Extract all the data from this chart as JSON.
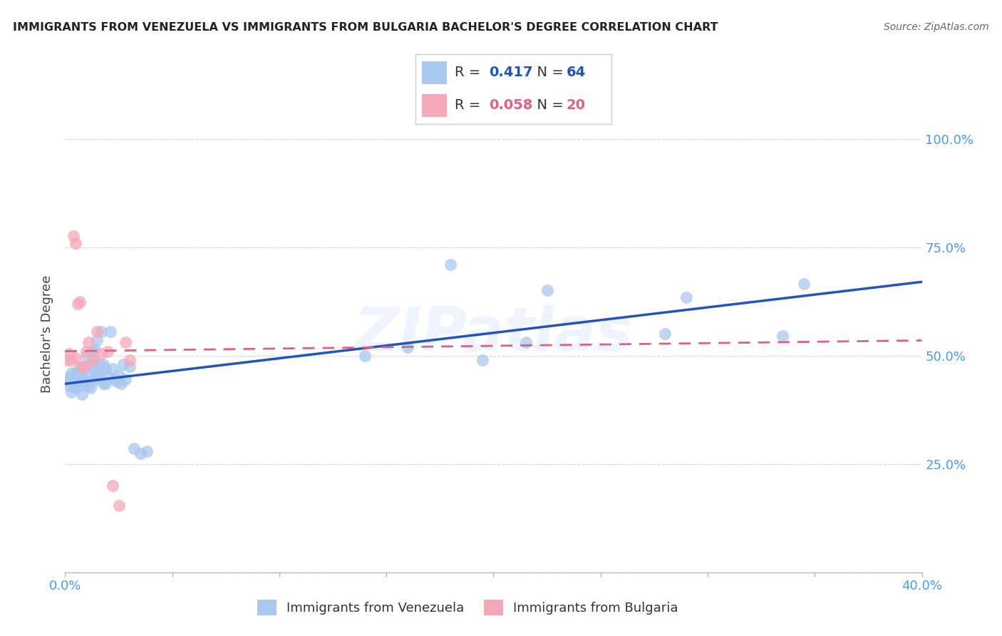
{
  "title": "IMMIGRANTS FROM VENEZUELA VS IMMIGRANTS FROM BULGARIA BACHELOR'S DEGREE CORRELATION CHART",
  "source": "Source: ZipAtlas.com",
  "ylabel": "Bachelor's Degree",
  "legend_label1": "Immigrants from Venezuela",
  "legend_label2": "Immigrants from Bulgaria",
  "R1": 0.417,
  "N1": 64,
  "R2": 0.058,
  "N2": 20,
  "xlim": [
    0.0,
    0.4
  ],
  "ylim": [
    0.0,
    1.1
  ],
  "color_blue": "#a8c8f0",
  "color_blue_line": "#2255bb",
  "color_pink": "#f5a8b8",
  "color_pink_line": "#e06080",
  "color_axis": "#4499ff",
  "watermark": "ZIPatlas",
  "venezuela_x": [
    0.001,
    0.002,
    0.002,
    0.003,
    0.003,
    0.004,
    0.004,
    0.005,
    0.005,
    0.006,
    0.006,
    0.007,
    0.007,
    0.007,
    0.008,
    0.008,
    0.009,
    0.009,
    0.01,
    0.01,
    0.01,
    0.011,
    0.011,
    0.012,
    0.012,
    0.013,
    0.013,
    0.013,
    0.014,
    0.014,
    0.015,
    0.015,
    0.015,
    0.016,
    0.016,
    0.017,
    0.017,
    0.018,
    0.018,
    0.019,
    0.019,
    0.02,
    0.021,
    0.022,
    0.023,
    0.024,
    0.025,
    0.026,
    0.027,
    0.028,
    0.03,
    0.032,
    0.035,
    0.038,
    0.14,
    0.16,
    0.18,
    0.195,
    0.215,
    0.225,
    0.28,
    0.29,
    0.335,
    0.345
  ],
  "venezuela_y": [
    0.44,
    0.43,
    0.45,
    0.415,
    0.46,
    0.43,
    0.455,
    0.425,
    0.455,
    0.44,
    0.465,
    0.43,
    0.445,
    0.47,
    0.41,
    0.45,
    0.44,
    0.475,
    0.44,
    0.455,
    0.5,
    0.43,
    0.475,
    0.48,
    0.425,
    0.495,
    0.51,
    0.44,
    0.45,
    0.515,
    0.455,
    0.465,
    0.535,
    0.46,
    0.48,
    0.445,
    0.555,
    0.48,
    0.435,
    0.435,
    0.47,
    0.455,
    0.555,
    0.47,
    0.445,
    0.44,
    0.455,
    0.435,
    0.48,
    0.445,
    0.475,
    0.285,
    0.275,
    0.28,
    0.5,
    0.52,
    0.71,
    0.49,
    0.53,
    0.65,
    0.55,
    0.635,
    0.545,
    0.665
  ],
  "bulgaria_x": [
    0.001,
    0.002,
    0.003,
    0.004,
    0.005,
    0.005,
    0.006,
    0.007,
    0.008,
    0.009,
    0.01,
    0.011,
    0.013,
    0.015,
    0.017,
    0.02,
    0.022,
    0.025,
    0.028,
    0.03
  ],
  "bulgaria_y": [
    0.49,
    0.505,
    0.49,
    0.775,
    0.76,
    0.495,
    0.62,
    0.625,
    0.475,
    0.475,
    0.51,
    0.53,
    0.49,
    0.555,
    0.505,
    0.51,
    0.2,
    0.155,
    0.53,
    0.49
  ],
  "ven_line_x0": 0.0,
  "ven_line_y0": 0.435,
  "ven_line_x1": 0.4,
  "ven_line_y1": 0.67,
  "bul_line_x0": 0.0,
  "bul_line_y0": 0.51,
  "bul_line_x1": 0.4,
  "bul_line_y1": 0.535
}
